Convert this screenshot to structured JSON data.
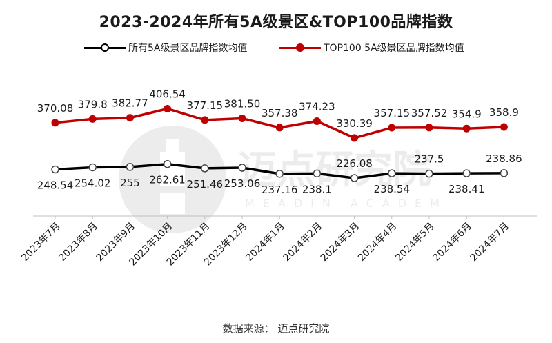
{
  "chart_data": {
    "type": "line",
    "title": "2023-2024年所有5A级景区&TOP100品牌指数",
    "categories": [
      "2023年7月",
      "2023年8月",
      "2023年9月",
      "2023年10月",
      "2023年11月",
      "2023年12月",
      "2024年1月",
      "2024年2月",
      "2024年3月",
      "2024年4月",
      "2024年5月",
      "2024年6月",
      "2024年7月"
    ],
    "series": [
      {
        "name": "所有5A级景区品牌指数均值",
        "color": "#000000",
        "values": [
          248.54,
          254.02,
          255,
          262.61,
          251.46,
          253.06,
          237.16,
          238.1,
          226.08,
          238.54,
          237.5,
          238.41,
          238.86
        ],
        "labels": [
          "248.54",
          "254.02",
          "255",
          "262.61",
          "251.46",
          "253.06",
          "237.16",
          "238.1",
          "226.08",
          "238.54",
          "237.5",
          "238.41",
          "238.86"
        ],
        "label_side": [
          "below",
          "below",
          "below",
          "below",
          "below",
          "below",
          "below",
          "below",
          "above",
          "below",
          "above",
          "below",
          "above"
        ]
      },
      {
        "name": "TOP100 5A级景区品牌指数均值",
        "color": "#c00000",
        "values": [
          370.08,
          379.8,
          382.77,
          406.54,
          377.15,
          381.5,
          357.38,
          374.23,
          330.39,
          357.15,
          357.52,
          354.9,
          358.9
        ],
        "labels": [
          "370.08",
          "379.8",
          "382.77",
          "406.54",
          "377.15",
          "381.50",
          "357.38",
          "374.23",
          "330.39",
          "357.15",
          "357.52",
          "354.9",
          "358.9"
        ],
        "label_side": [
          "above",
          "above",
          "above",
          "above",
          "above",
          "above",
          "above",
          "above",
          "above",
          "above",
          "above",
          "above",
          "above"
        ]
      }
    ],
    "xlabel": "",
    "ylabel": "",
    "ylim": [
      140,
      490
    ],
    "grid": false,
    "legend_position": "top"
  },
  "source_text": "数据来源： 迈点研究院",
  "watermark": {
    "name": "迈点研究院",
    "subtext": "MEADIN ACADEMY"
  }
}
